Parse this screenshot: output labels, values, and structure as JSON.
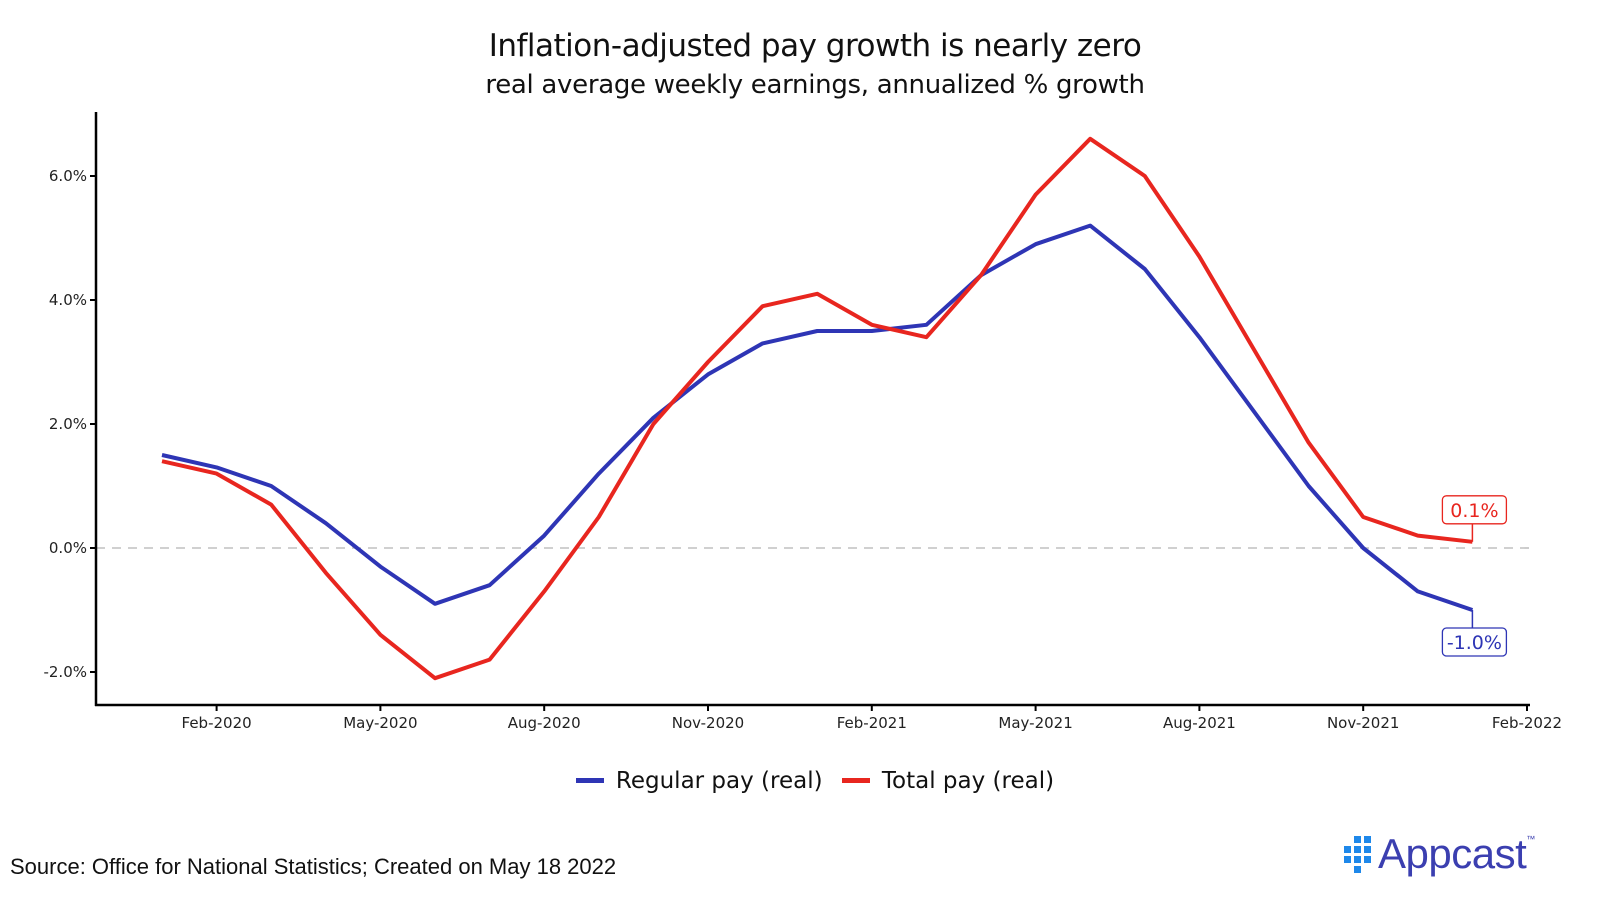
{
  "chart_data": {
    "type": "line",
    "title": "Inflation-adjusted pay growth is nearly zero",
    "subtitle": "real average weekly earnings, annualized % growth",
    "xlabel": "",
    "ylabel": "",
    "x": [
      "Jan-2020",
      "Feb-2020",
      "Mar-2020",
      "Apr-2020",
      "May-2020",
      "Jun-2020",
      "Jul-2020",
      "Aug-2020",
      "Sep-2020",
      "Oct-2020",
      "Nov-2020",
      "Dec-2020",
      "Jan-2021",
      "Feb-2021",
      "Mar-2021",
      "Apr-2021",
      "May-2021",
      "Jun-2021",
      "Jul-2021",
      "Aug-2021",
      "Sep-2021",
      "Oct-2021",
      "Nov-2021",
      "Dec-2021",
      "Jan-2022"
    ],
    "x_tick_labels": [
      "Feb-2020",
      "May-2020",
      "Aug-2020",
      "Nov-2020",
      "Feb-2021",
      "May-2021",
      "Aug-2021",
      "Nov-2021",
      "Feb-2022"
    ],
    "x_tick_indices": [
      1,
      4,
      7,
      10,
      13,
      16,
      19,
      22,
      25
    ],
    "y_ticks": [
      -2,
      0,
      2,
      4,
      6
    ],
    "y_tick_labels": [
      "-2.0%",
      "0.0%",
      "2.0%",
      "4.0%",
      "6.0%"
    ],
    "ylim": [
      -2.5,
      7.0
    ],
    "reference_line": {
      "y": 0,
      "style": "dashed",
      "color": "#c0c0c0"
    },
    "grid": false,
    "legend_position": "bottom",
    "series": [
      {
        "name": "Regular pay (real)",
        "color": "#2e35b5",
        "values": [
          1.5,
          1.3,
          1.0,
          0.4,
          -0.3,
          -0.9,
          -0.6,
          0.2,
          1.2,
          2.1,
          2.8,
          3.3,
          3.5,
          3.5,
          3.6,
          4.4,
          4.9,
          5.2,
          4.5,
          3.4,
          2.2,
          1.0,
          0.0,
          -0.7,
          -1.0
        ],
        "end_label": "-1.0%"
      },
      {
        "name": "Total pay (real)",
        "color": "#e8261f",
        "values": [
          1.4,
          1.2,
          0.7,
          -0.4,
          -1.4,
          -2.1,
          -1.8,
          -0.7,
          0.5,
          2.0,
          3.0,
          3.9,
          4.1,
          3.6,
          3.4,
          4.4,
          5.7,
          6.6,
          6.0,
          4.7,
          3.2,
          1.7,
          0.5,
          0.2,
          0.1
        ],
        "end_label": "0.1%"
      }
    ]
  },
  "footer": {
    "source": "Source: Office for National Statistics; Created on May 18 2022",
    "logo_text": "Appcast",
    "logo_tm": "™"
  }
}
